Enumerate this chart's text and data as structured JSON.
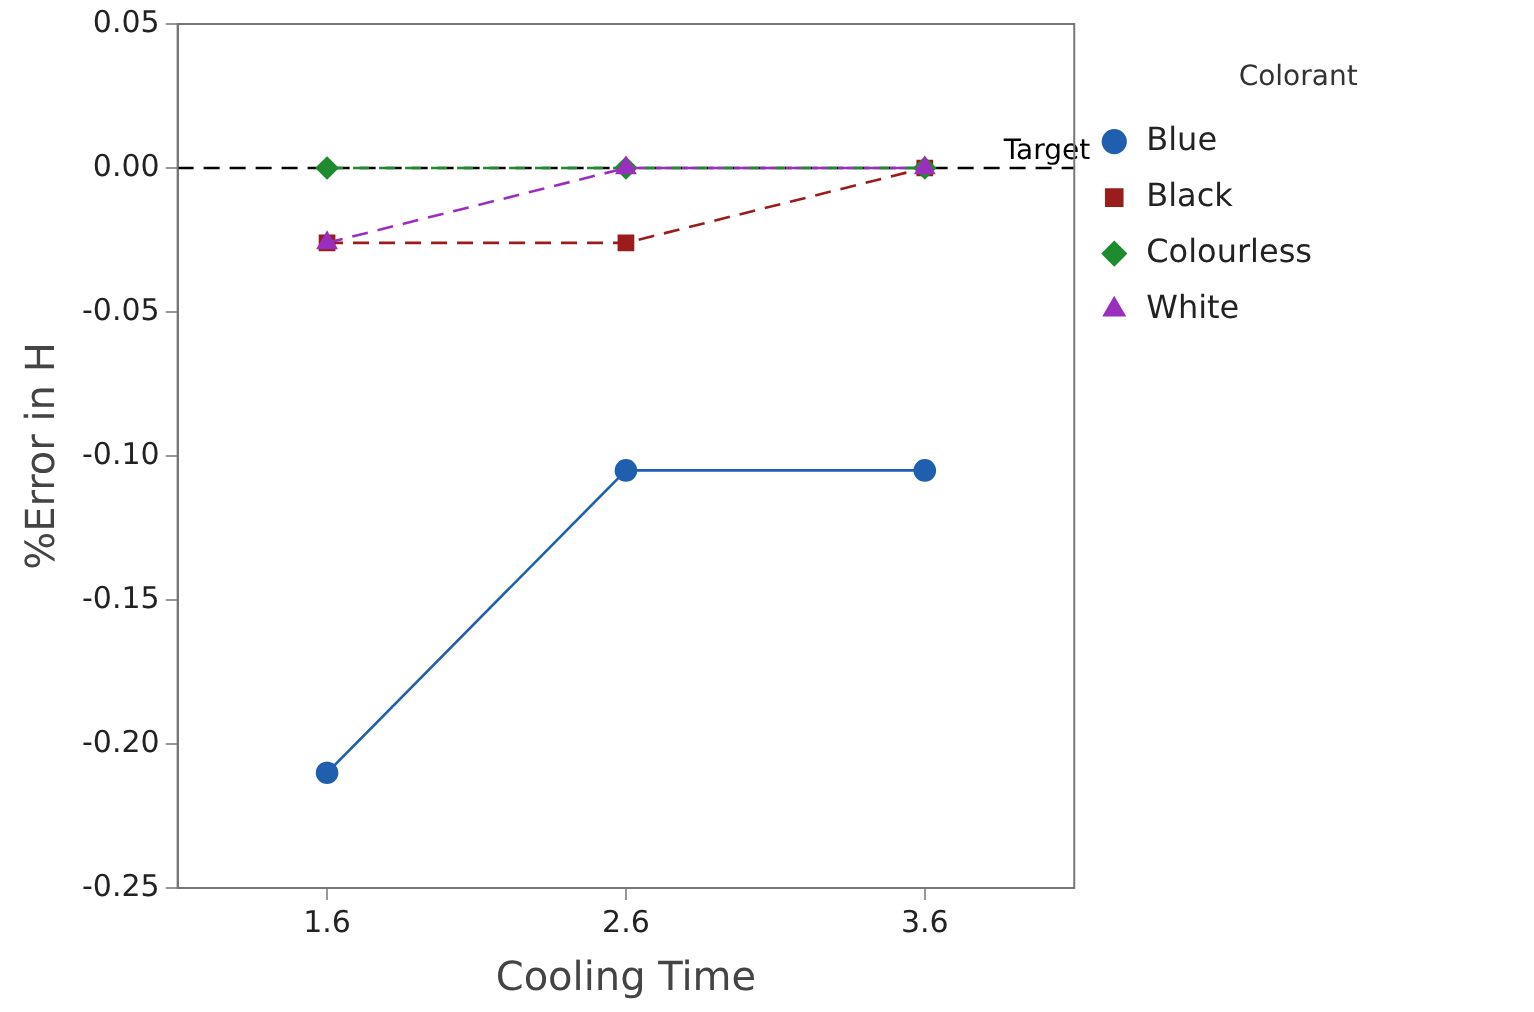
{
  "chart_data": {
    "type": "line",
    "xlabel": "Cooling Time",
    "ylabel": "%Error in H",
    "legend_title": "Colorant",
    "legend": "top right",
    "x": [
      1.6,
      2.6,
      3.6
    ],
    "xlim": [
      1.1,
      4.1
    ],
    "xticks": [
      1.6,
      2.6,
      3.6
    ],
    "ylim": [
      -0.25,
      0.05
    ],
    "yticks": [
      {
        "value": -0.25,
        "label": "-0.25"
      },
      {
        "value": -0.2,
        "label": "-0.20"
      },
      {
        "value": -0.15,
        "label": "-0.15"
      },
      {
        "value": -0.1,
        "label": "-0.10"
      },
      {
        "value": -0.05,
        "label": "-0.05"
      },
      {
        "value": 0,
        "label": "0.00"
      },
      {
        "value": 0.05,
        "label": "0.05"
      }
    ],
    "grid": false,
    "series": [
      {
        "name": "Blue",
        "color": "#1f5fad",
        "values": [
          -0.21,
          -0.105,
          -0.105
        ],
        "marker": "circle",
        "line_style": "solid"
      },
      {
        "name": "Black",
        "color": "#9b1c1c",
        "values": [
          -0.026,
          -0.026,
          0
        ],
        "marker": "square",
        "line_style": "dashed"
      },
      {
        "name": "Colourless",
        "color": "#1e8c2e",
        "values": [
          0,
          0,
          0
        ],
        "marker": "diamond",
        "line_style": "dashed"
      },
      {
        "name": "White",
        "color": "#9a2fbf",
        "values": [
          -0.026,
          0,
          0
        ],
        "marker": "triangle",
        "line_style": "dashed"
      }
    ],
    "ref_lines": [
      {
        "axis": "y",
        "value": 0,
        "label": "Target",
        "color": "#000000",
        "line_style": "dashed"
      }
    ]
  }
}
